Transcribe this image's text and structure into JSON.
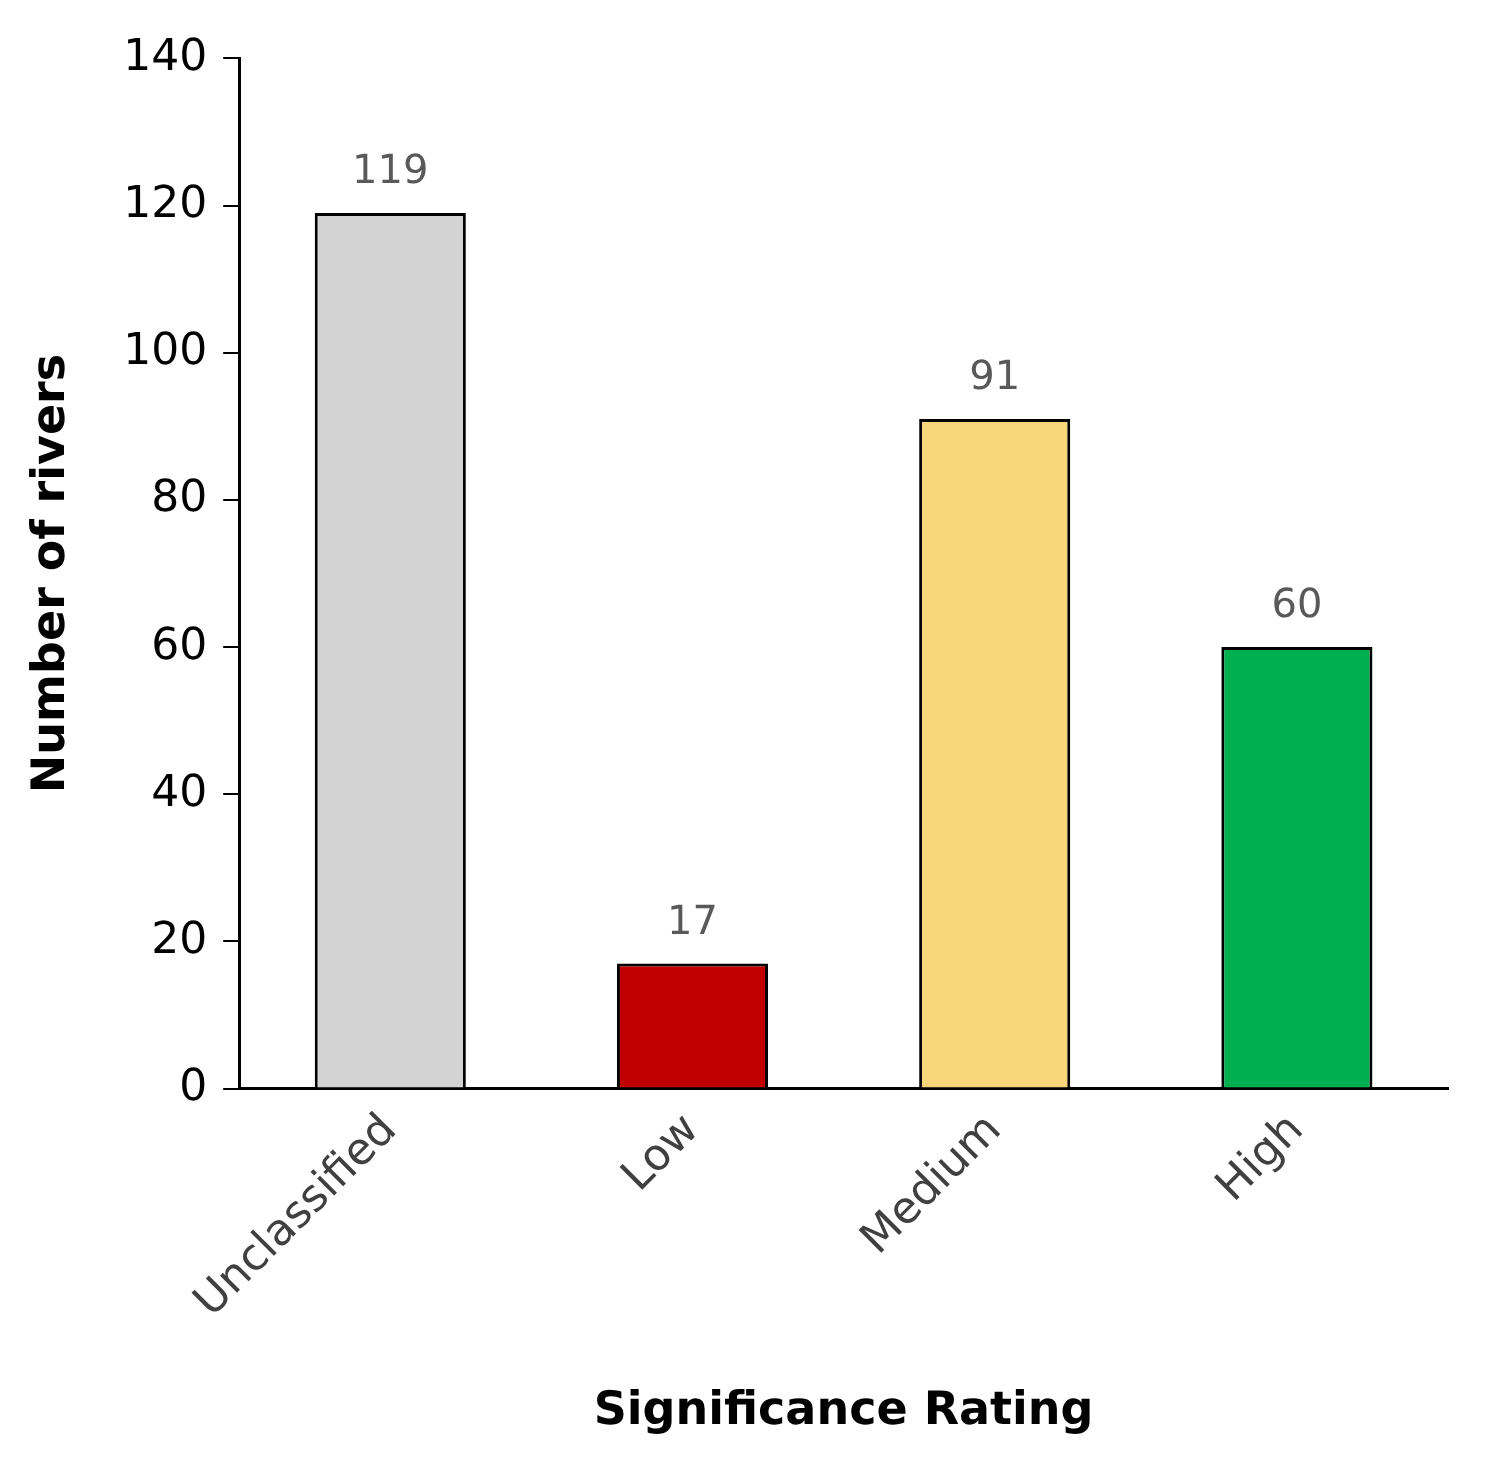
{
  "chart_data": {
    "type": "bar",
    "xlabel": "Significance Rating",
    "ylabel": "Number of rivers",
    "categories": [
      "Unclassified",
      "Low",
      "Medium",
      "High"
    ],
    "values": [
      119,
      17,
      91,
      60
    ],
    "colors": [
      "#d3d3d3",
      "#c00000",
      "#f8d77a",
      "#00b050"
    ],
    "ylim": [
      0,
      140
    ],
    "yticks": [
      0,
      20,
      40,
      60,
      80,
      100,
      120,
      140
    ],
    "grid": false,
    "legend": false,
    "data_labels": true
  }
}
